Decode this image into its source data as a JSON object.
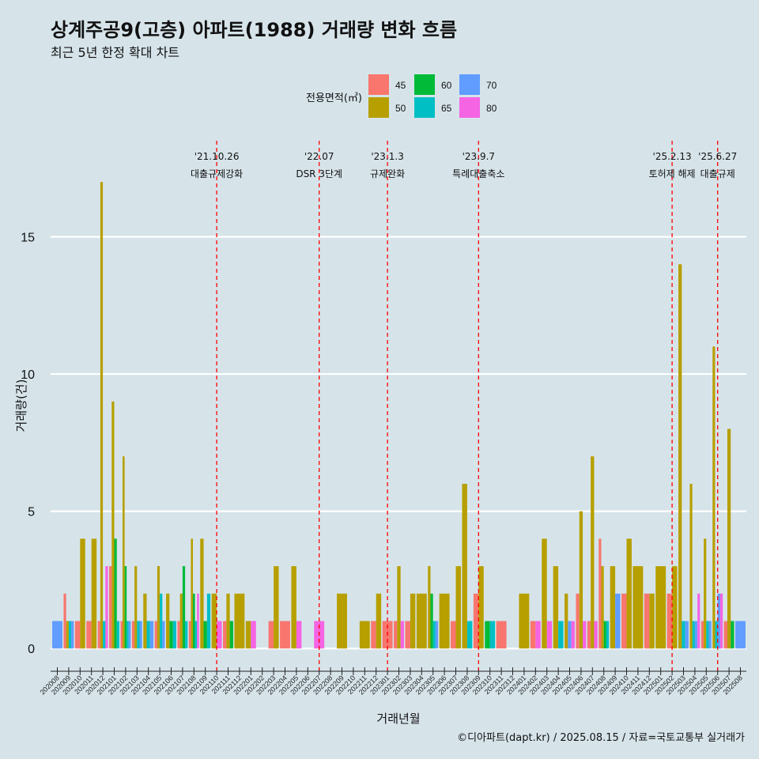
{
  "chart_data": {
    "type": "bar",
    "title": "상계주공9(고층) 아파트(1988) 거래량 변화 흐름",
    "subtitle": "최근 5년 한정 확대 차트",
    "xlabel": "거래년월",
    "ylabel": "거래량(건)",
    "caption": "©디아파트(dapt.kr) / 2025.08.15 / 자료=국토교통부 실거래가",
    "ylim": [
      -0.8,
      18.5
    ],
    "yticks": [
      0,
      5,
      10,
      15
    ],
    "grid": true,
    "legend": {
      "title": "전용면적(㎡)",
      "position": "top-center",
      "entries": [
        {
          "label": "45",
          "color": "#F8766D"
        },
        {
          "label": "50",
          "color": "#B79F00"
        },
        {
          "label": "60",
          "color": "#00BA38"
        },
        {
          "label": "65",
          "color": "#00BFC4"
        },
        {
          "label": "70",
          "color": "#619CFF"
        },
        {
          "label": "80",
          "color": "#F564E3"
        }
      ]
    },
    "categories": [
      "202008",
      "202009",
      "202010",
      "202011",
      "202012",
      "202101",
      "202102",
      "202103",
      "202104",
      "202105",
      "202106",
      "202107",
      "202108",
      "202109",
      "202110",
      "202111",
      "202112",
      "202201",
      "202202",
      "202203",
      "202204",
      "202205",
      "202206",
      "202207",
      "202208",
      "202209",
      "202210",
      "202211",
      "202212",
      "202301",
      "202302",
      "202303",
      "202304",
      "202305",
      "202306",
      "202307",
      "202308",
      "202309",
      "202310",
      "202311",
      "202312",
      "202401",
      "202402",
      "202403",
      "202404",
      "202405",
      "202406",
      "202407",
      "202408",
      "202409",
      "202410",
      "202411",
      "202412",
      "202501",
      "202502",
      "202503",
      "202504",
      "202505",
      "202506",
      "202507",
      "202508"
    ],
    "series": [
      {
        "name": "45",
        "color": "#F8766D",
        "values": [
          0,
          2,
          1,
          1,
          1,
          3,
          1,
          1,
          0,
          1,
          0,
          1,
          1,
          0,
          0,
          1,
          0,
          0,
          0,
          1,
          1,
          0,
          0,
          0,
          0,
          0,
          0,
          0,
          1,
          1,
          1,
          1,
          0,
          0,
          0,
          1,
          0,
          2,
          0,
          1,
          0,
          0,
          1,
          0,
          0,
          0,
          2,
          1,
          4,
          0,
          2,
          0,
          2,
          0,
          2,
          0,
          0,
          1,
          0,
          1,
          0
        ]
      },
      {
        "name": "50",
        "color": "#B79F00",
        "values": [
          0,
          1,
          4,
          4,
          17,
          9,
          7,
          3,
          2,
          3,
          2,
          2,
          4,
          4,
          2,
          2,
          2,
          1,
          0,
          3,
          0,
          3,
          0,
          0,
          0,
          2,
          0,
          1,
          2,
          0,
          3,
          2,
          2,
          3,
          2,
          3,
          6,
          3,
          0,
          0,
          0,
          2,
          0,
          4,
          3,
          2,
          5,
          7,
          3,
          3,
          4,
          3,
          2,
          3,
          3,
          14,
          6,
          4,
          11,
          8,
          0
        ]
      },
      {
        "name": "60",
        "color": "#00BA38",
        "values": [
          0,
          0,
          0,
          0,
          0,
          4,
          3,
          0,
          0,
          0,
          1,
          3,
          2,
          1,
          0,
          1,
          0,
          0,
          0,
          0,
          0,
          0,
          0,
          0,
          0,
          0,
          0,
          0,
          0,
          0,
          0,
          0,
          0,
          2,
          0,
          0,
          0,
          0,
          1,
          0,
          0,
          0,
          0,
          0,
          0,
          0,
          0,
          0,
          1,
          0,
          0,
          0,
          0,
          0,
          0,
          0,
          0,
          0,
          0,
          1,
          0
        ]
      },
      {
        "name": "65",
        "color": "#00BFC4",
        "values": [
          0,
          1,
          0,
          0,
          1,
          1,
          1,
          1,
          1,
          2,
          1,
          1,
          1,
          2,
          0,
          0,
          0,
          0,
          0,
          0,
          0,
          0,
          0,
          0,
          0,
          0,
          0,
          0,
          0,
          0,
          0,
          0,
          0,
          1,
          0,
          0,
          1,
          0,
          1,
          0,
          0,
          0,
          0,
          0,
          1,
          0,
          0,
          0,
          1,
          0,
          0,
          0,
          0,
          0,
          0,
          1,
          1,
          1,
          1,
          0,
          0
        ]
      },
      {
        "name": "70",
        "color": "#619CFF",
        "values": [
          1,
          1,
          0,
          0,
          0,
          0,
          1,
          1,
          1,
          1,
          0,
          0,
          0,
          0,
          0,
          0,
          0,
          0,
          0,
          0,
          0,
          0,
          0,
          0,
          0,
          0,
          0,
          0,
          0,
          0,
          0,
          0,
          0,
          1,
          0,
          0,
          0,
          0,
          0,
          0,
          0,
          0,
          0,
          0,
          0,
          1,
          0,
          0,
          0,
          2,
          0,
          0,
          0,
          0,
          0,
          1,
          1,
          1,
          2,
          0,
          1
        ]
      },
      {
        "name": "80",
        "color": "#F564E3",
        "values": [
          0,
          0,
          0,
          0,
          3,
          0,
          0,
          0,
          0,
          0,
          0,
          0,
          2,
          0,
          1,
          0,
          0,
          1,
          0,
          0,
          0,
          1,
          0,
          1,
          0,
          0,
          0,
          0,
          0,
          0,
          1,
          0,
          0,
          0,
          0,
          0,
          0,
          0,
          0,
          0,
          0,
          0,
          1,
          1,
          0,
          1,
          1,
          1,
          0,
          0,
          0,
          0,
          0,
          0,
          0,
          0,
          2,
          0,
          2,
          0,
          0
        ]
      }
    ],
    "events": [
      {
        "date": "202110",
        "label_top": "'21.10.26",
        "label_bottom": "대출규제강화"
      },
      {
        "date": "202207",
        "label_top": "'22.07",
        "label_bottom": "DSR 3단계"
      },
      {
        "date": "202301",
        "label_top": "'23.1.3",
        "label_bottom": "규제완화"
      },
      {
        "date": "202309",
        "label_top": "'23.9.7",
        "label_bottom": "특례대출축소"
      },
      {
        "date": "202502",
        "label_top": "'25.2.13",
        "label_bottom": "토허제 해제"
      },
      {
        "date": "202506",
        "label_top": "'25.6.27",
        "label_bottom": "대출규제"
      }
    ]
  }
}
